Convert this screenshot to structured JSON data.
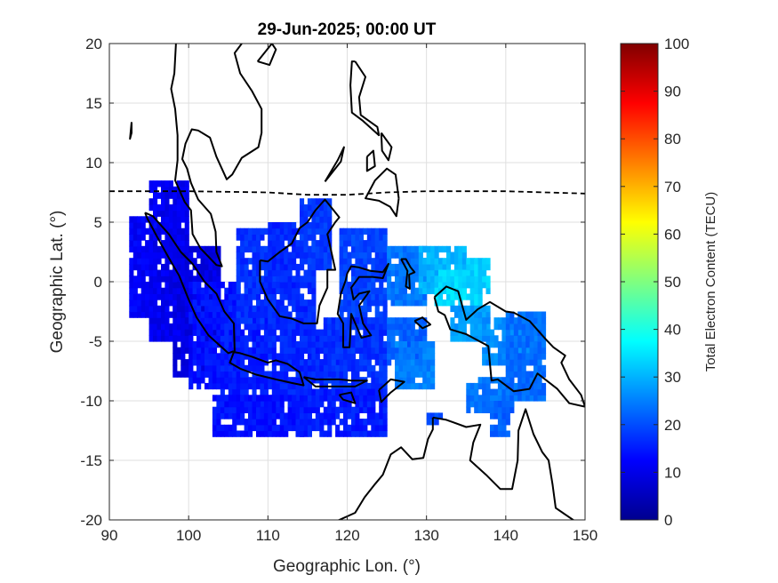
{
  "chart_data": {
    "type": "heatmap",
    "title": "29-Jun-2025; 00:00 UT",
    "xlabel": "Geographic Lon. (°)",
    "ylabel": "Geographic Lat. (°)",
    "xlim": [
      90,
      150
    ],
    "ylim": [
      -20,
      20
    ],
    "xticks": [
      90,
      100,
      110,
      120,
      130,
      140,
      150
    ],
    "yticks": [
      20,
      15,
      10,
      5,
      0,
      -5,
      -10,
      -15,
      -20
    ],
    "grid": true,
    "colorbar": {
      "label": "Total Electron Content (TECU)",
      "range": [
        0,
        100
      ],
      "ticks": [
        0,
        10,
        20,
        30,
        40,
        50,
        60,
        70,
        80,
        90,
        100
      ],
      "colormap": "jet",
      "placement": "right"
    },
    "dip_equator": [
      [
        90,
        7.6
      ],
      [
        100,
        7.6
      ],
      [
        110,
        7.5
      ],
      [
        115,
        7.3
      ],
      [
        120,
        7.3
      ],
      [
        125,
        7.5
      ],
      [
        130,
        7.6
      ],
      [
        135,
        7.6
      ],
      [
        140,
        7.6
      ],
      [
        145,
        7.5
      ],
      [
        150,
        7.4
      ]
    ],
    "tec_regions": [
      {
        "lon": [
          92.5,
          96
        ],
        "lat": [
          -3,
          5.5
        ],
        "tec": 12
      },
      {
        "lon": [
          95,
          100
        ],
        "lat": [
          -5,
          8.3
        ],
        "tec": 11
      },
      {
        "lon": [
          98,
          104
        ],
        "lat": [
          -8,
          3
        ],
        "tec": 10
      },
      {
        "lon": [
          100,
          106
        ],
        "lat": [
          -9,
          0
        ],
        "tec": 14
      },
      {
        "lon": [
          104,
          110
        ],
        "lat": [
          -11,
          -2
        ],
        "tec": 15
      },
      {
        "lon": [
          106,
          112
        ],
        "lat": [
          -4,
          4.5
        ],
        "tec": 17
      },
      {
        "lon": [
          110,
          116
        ],
        "lat": [
          -4,
          5
        ],
        "tec": 16
      },
      {
        "lon": [
          114,
          118
        ],
        "lat": [
          1,
          7
        ],
        "tec": 18
      },
      {
        "lon": [
          110,
          120
        ],
        "lat": [
          -10,
          -4
        ],
        "tec": 16
      },
      {
        "lon": [
          119,
          125
        ],
        "lat": [
          -4,
          4.5
        ],
        "tec": 19
      },
      {
        "lon": [
          117,
          125
        ],
        "lat": [
          -9,
          -3
        ],
        "tec": 17
      },
      {
        "lon": [
          103,
          115
        ],
        "lat": [
          -13,
          -9.5
        ],
        "tec": 14
      },
      {
        "lon": [
          114,
          125
        ],
        "lat": [
          -13,
          -9
        ],
        "tec": 15
      },
      {
        "lon": [
          125,
          130
        ],
        "lat": [
          -2,
          3
        ],
        "tec": 24
      },
      {
        "lon": [
          125,
          130
        ],
        "lat": [
          -7,
          -3
        ],
        "tec": 22
      },
      {
        "lon": [
          129,
          135
        ],
        "lat": [
          -1,
          3
        ],
        "tec": 30
      },
      {
        "lon": [
          131,
          137
        ],
        "lat": [
          -2,
          1
        ],
        "tec": 34
      },
      {
        "lon": [
          135,
          138
        ],
        "lat": [
          -1,
          2
        ],
        "tec": 33
      },
      {
        "lon": [
          126,
          131
        ],
        "lat": [
          -9,
          -5
        ],
        "tec": 25
      },
      {
        "lon": [
          133,
          138
        ],
        "lat": [
          -5,
          -2
        ],
        "tec": 28
      },
      {
        "lon": [
          137,
          144
        ],
        "lat": [
          -7,
          -3
        ],
        "tec": 26
      },
      {
        "lon": [
          135,
          141
        ],
        "lat": [
          -11,
          -8
        ],
        "tec": 24
      },
      {
        "lon": [
          140,
          145
        ],
        "lat": [
          -10,
          -2.5
        ],
        "tec": 23
      },
      {
        "lon": [
          130,
          132
        ],
        "lat": [
          -12,
          -11
        ],
        "tec": 20
      },
      {
        "lon": [
          138,
          141
        ],
        "lat": [
          -13,
          -10
        ],
        "tec": 22
      }
    ],
    "coastlines": [
      [
        [
          94.5,
          5.8
        ],
        [
          95.5,
          5.5
        ],
        [
          97.5,
          4
        ],
        [
          99,
          2.5
        ],
        [
          100.5,
          1.5
        ],
        [
          102,
          0
        ],
        [
          103.5,
          -1
        ],
        [
          104.5,
          -2.5
        ],
        [
          105.7,
          -3.5
        ],
        [
          105.8,
          -5.8
        ],
        [
          105,
          -6
        ],
        [
          102.5,
          -4.5
        ],
        [
          101,
          -3
        ],
        [
          100,
          -1.5
        ],
        [
          98.8,
          0.5
        ],
        [
          97.5,
          2
        ],
        [
          96,
          3.8
        ],
        [
          94.8,
          5.3
        ],
        [
          94.5,
          5.8
        ]
      ],
      [
        [
          98.4,
          20
        ],
        [
          98.2,
          17.5
        ],
        [
          97.8,
          16.2
        ],
        [
          98.3,
          14.5
        ],
        [
          98.6,
          12.3
        ],
        [
          98.6,
          10.2
        ],
        [
          98.3,
          8.5
        ],
        [
          99.5,
          6.7
        ],
        [
          100.3,
          6
        ],
        [
          100.5,
          4
        ],
        [
          101.5,
          2.8
        ],
        [
          103.5,
          1.4
        ],
        [
          104.2,
          1.3
        ],
        [
          103.5,
          2.5
        ],
        [
          103.4,
          4.2
        ],
        [
          102.8,
          5.7
        ],
        [
          101.2,
          6.9
        ],
        [
          100.3,
          8.3
        ],
        [
          99.8,
          9.5
        ],
        [
          99.2,
          10.3
        ],
        [
          99.6,
          11.6
        ],
        [
          100.4,
          12.8
        ],
        [
          101.2,
          12.7
        ],
        [
          102.7,
          12.1
        ],
        [
          103.5,
          10.5
        ],
        [
          104.8,
          8.6
        ],
        [
          105.5,
          9
        ],
        [
          106.7,
          10.4
        ],
        [
          108.8,
          11.3
        ],
        [
          109.2,
          12.5
        ],
        [
          109.2,
          14.5
        ],
        [
          108,
          16
        ],
        [
          106.5,
          17.5
        ],
        [
          105.8,
          19.2
        ],
        [
          106.7,
          20
        ]
      ],
      [
        [
          109,
          1.8
        ],
        [
          109,
          0
        ],
        [
          110,
          -1.5
        ],
        [
          111.5,
          -2.9
        ],
        [
          113,
          -3.1
        ],
        [
          114.5,
          -3.5
        ],
        [
          116.2,
          -3.5
        ],
        [
          116.5,
          -2
        ],
        [
          117.5,
          -0.5
        ],
        [
          117.5,
          1
        ],
        [
          118.5,
          1
        ],
        [
          118,
          2.5
        ],
        [
          117.5,
          4
        ],
        [
          118.5,
          5
        ],
        [
          119,
          5.4
        ],
        [
          117.2,
          6.9
        ],
        [
          116,
          6
        ],
        [
          115,
          5
        ],
        [
          114,
          4.5
        ],
        [
          113,
          3.2
        ],
        [
          111.5,
          2.5
        ],
        [
          110,
          1.7
        ],
        [
          109,
          1.8
        ]
      ],
      [
        [
          105.7,
          -5.9
        ],
        [
          106.5,
          -6
        ],
        [
          108,
          -6.3
        ],
        [
          110,
          -6.8
        ],
        [
          111,
          -6.6
        ],
        [
          112.5,
          -6.9
        ],
        [
          114,
          -7.6
        ],
        [
          114.5,
          -8.7
        ],
        [
          113,
          -8.5
        ],
        [
          111,
          -8.2
        ],
        [
          108.5,
          -7.8
        ],
        [
          106.5,
          -7.3
        ],
        [
          105.2,
          -6.8
        ],
        [
          105.7,
          -5.9
        ]
      ],
      [
        [
          120,
          0.7
        ],
        [
          120.5,
          1.3
        ],
        [
          121.5,
          1.2
        ],
        [
          123,
          0.9
        ],
        [
          124.5,
          0.8
        ],
        [
          125.2,
          1.5
        ],
        [
          124.5,
          0.3
        ],
        [
          123.2,
          0.4
        ],
        [
          121.5,
          0.4
        ],
        [
          120.5,
          -0.5
        ],
        [
          120.8,
          -1.5
        ],
        [
          121.5,
          -1
        ],
        [
          122.8,
          -0.8
        ],
        [
          121.5,
          -2
        ],
        [
          122,
          -3.5
        ],
        [
          123,
          -4.5
        ],
        [
          121.8,
          -4.7
        ],
        [
          120.5,
          -2.7
        ],
        [
          120.3,
          -5.5
        ],
        [
          119.5,
          -5.5
        ],
        [
          119.5,
          -3.5
        ],
        [
          118.8,
          -2.7
        ],
        [
          119.2,
          -1
        ],
        [
          119.8,
          0.1
        ],
        [
          120,
          0.7
        ]
      ],
      [
        [
          131,
          -1.3
        ],
        [
          132.5,
          -0.4
        ],
        [
          134,
          -0.8
        ],
        [
          135,
          -3.2
        ],
        [
          136.5,
          -2.3
        ],
        [
          138,
          -1.7
        ],
        [
          140,
          -2.5
        ],
        [
          141,
          -2.6
        ],
        [
          143,
          -3.3
        ],
        [
          145,
          -4.8
        ],
        [
          146,
          -5.5
        ],
        [
          147.5,
          -6.2
        ],
        [
          147,
          -6.8
        ],
        [
          148,
          -8.2
        ],
        [
          149.5,
          -9.5
        ],
        [
          150,
          -10.5
        ],
        [
          148,
          -10.2
        ],
        [
          146.5,
          -9
        ],
        [
          144,
          -7.7
        ],
        [
          143,
          -9
        ],
        [
          141,
          -9.2
        ],
        [
          139,
          -8.2
        ],
        [
          138.2,
          -8.3
        ],
        [
          137.8,
          -5.4
        ],
        [
          135,
          -4.4
        ],
        [
          133,
          -4
        ],
        [
          132.3,
          -2.8
        ],
        [
          131.5,
          -2.5
        ],
        [
          131,
          -1.3
        ]
      ],
      [
        [
          128.5,
          -3.3
        ],
        [
          129.5,
          -3
        ],
        [
          130.5,
          -3.6
        ],
        [
          129.5,
          -3.9
        ],
        [
          128.5,
          -3.3
        ]
      ],
      [
        [
          124,
          -9.1
        ],
        [
          125.5,
          -8.2
        ],
        [
          127.2,
          -8.4
        ],
        [
          125.5,
          -9.3
        ],
        [
          124.3,
          -10.1
        ],
        [
          124,
          -9.1
        ]
      ],
      [
        [
          114.5,
          -8
        ],
        [
          116,
          -8.2
        ],
        [
          119,
          -8.2
        ],
        [
          120.5,
          -8.3
        ],
        [
          122.5,
          -8.3
        ],
        [
          121,
          -8.8
        ],
        [
          119,
          -8.8
        ],
        [
          116,
          -8.8
        ],
        [
          114.5,
          -8
        ]
      ],
      [
        [
          119,
          -9.5
        ],
        [
          120.5,
          -9.3
        ],
        [
          121,
          -10.2
        ],
        [
          119.5,
          -9.9
        ],
        [
          119,
          -9.5
        ]
      ],
      [
        [
          126.8,
          1.9
        ],
        [
          127.4,
          1.9
        ],
        [
          128,
          1.2
        ],
        [
          128.5,
          0.8
        ],
        [
          127.8,
          0.6
        ],
        [
          127.9,
          -0.6
        ],
        [
          127.4,
          -0.4
        ],
        [
          127.6,
          0.9
        ],
        [
          126.8,
          1.9
        ]
      ],
      [
        [
          126.5,
          7
        ],
        [
          126.2,
          5.5
        ],
        [
          125.4,
          6.3
        ],
        [
          124,
          6.8
        ],
        [
          122.3,
          7
        ],
        [
          123.5,
          8.5
        ],
        [
          125,
          9.5
        ],
        [
          126.1,
          9
        ],
        [
          126.5,
          7
        ]
      ],
      [
        [
          121,
          18.5
        ],
        [
          122.3,
          17.2
        ],
        [
          121.5,
          15.5
        ],
        [
          121.7,
          14
        ],
        [
          123.8,
          13
        ],
        [
          124,
          12.3
        ],
        [
          122,
          13.5
        ],
        [
          120.6,
          14.2
        ],
        [
          120.4,
          16.5
        ],
        [
          120.6,
          18.5
        ],
        [
          121,
          18.5
        ]
      ],
      [
        [
          117.2,
          8.4
        ],
        [
          118.8,
          10.2
        ],
        [
          119.6,
          11.3
        ],
        [
          119.2,
          10.1
        ],
        [
          117.2,
          8.4
        ]
      ],
      [
        [
          122.5,
          10.5
        ],
        [
          123.3,
          11
        ],
        [
          123.5,
          9.7
        ],
        [
          122.5,
          9.3
        ],
        [
          122.5,
          10.5
        ]
      ],
      [
        [
          124.3,
          12.5
        ],
        [
          125.6,
          11.3
        ],
        [
          125.2,
          10.2
        ],
        [
          124.4,
          11
        ],
        [
          124.3,
          12.5
        ]
      ],
      [
        [
          108.7,
          18.5
        ],
        [
          110.5,
          20
        ],
        [
          111,
          19.5
        ],
        [
          110.2,
          18.2
        ],
        [
          108.7,
          18.5
        ]
      ],
      [
        [
          92.8,
          13.4
        ],
        [
          92.6,
          12
        ],
        [
          92.8,
          12.5
        ],
        [
          92.8,
          13.4
        ]
      ],
      [
        [
          130.8,
          -11.4
        ],
        [
          132.5,
          -11.6
        ],
        [
          135,
          -12.2
        ],
        [
          136.8,
          -12
        ],
        [
          135.9,
          -13.5
        ],
        [
          135.5,
          -15
        ],
        [
          137.5,
          -16.2
        ],
        [
          139.3,
          -17.4
        ],
        [
          140.8,
          -17.4
        ],
        [
          141.5,
          -15
        ],
        [
          141.6,
          -12.5
        ],
        [
          142.5,
          -10.7
        ],
        [
          143.5,
          -12.8
        ],
        [
          144.6,
          -14.3
        ],
        [
          145.4,
          -15
        ],
        [
          145.9,
          -17
        ],
        [
          146.3,
          -19
        ],
        [
          148.5,
          -20
        ],
        [
          150,
          -20.6
        ]
      ],
      [
        [
          116.6,
          -20.6
        ],
        [
          119,
          -20
        ],
        [
          121,
          -19.4
        ],
        [
          122.2,
          -18.1
        ],
        [
          123.5,
          -17
        ],
        [
          124.5,
          -16.2
        ],
        [
          125.5,
          -14.5
        ],
        [
          126.8,
          -13.9
        ],
        [
          128.2,
          -14.9
        ],
        [
          129.6,
          -14.8
        ],
        [
          130.2,
          -13.2
        ],
        [
          130.8,
          -12.4
        ],
        [
          130.8,
          -11.4
        ]
      ]
    ]
  }
}
